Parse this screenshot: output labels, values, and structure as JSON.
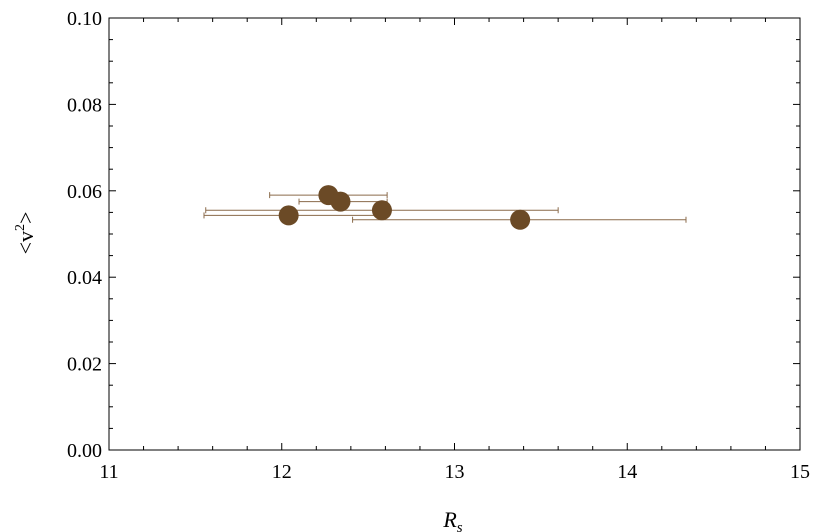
{
  "chart_data": {
    "type": "scatter",
    "title": "",
    "xlabel": {
      "main": "R",
      "sub": "s"
    },
    "ylabel": {
      "pre": "<v",
      "sup": "2",
      "post": ">"
    },
    "xlim": [
      11,
      15
    ],
    "ylim": [
      0,
      0.1
    ],
    "xticks": [
      11,
      12,
      13,
      14,
      15
    ],
    "xtick_labels": [
      "11",
      "12",
      "13",
      "14",
      "15"
    ],
    "yticks": [
      0,
      0.02,
      0.04,
      0.06,
      0.08,
      0.1
    ],
    "ytick_labels": [
      "0.00",
      "0.02",
      "0.04",
      "0.06",
      "0.08",
      "0.10"
    ],
    "grid": false,
    "marker_color": "#6b4a26",
    "errorbar_color": "#8a6a4a",
    "points": [
      {
        "x": 12.04,
        "y": 0.0543,
        "xerr_low": 11.55,
        "xerr_high": 12.58,
        "yerr_low": 0.0528,
        "yerr_high": 0.0558
      },
      {
        "x": 12.27,
        "y": 0.059,
        "xerr_low": 11.93,
        "xerr_high": 12.61,
        "yerr_low": 0.0582,
        "yerr_high": 0.0598
      },
      {
        "x": 12.34,
        "y": 0.0575,
        "xerr_low": 12.1,
        "xerr_high": 12.61,
        "yerr_low": 0.0568,
        "yerr_high": 0.0582
      },
      {
        "x": 12.58,
        "y": 0.0555,
        "xerr_low": 11.56,
        "xerr_high": 13.6,
        "yerr_low": 0.054,
        "yerr_high": 0.0568
      },
      {
        "x": 13.38,
        "y": 0.0533,
        "xerr_low": 12.41,
        "xerr_high": 14.34,
        "yerr_low": 0.0525,
        "yerr_high": 0.0541
      }
    ]
  }
}
